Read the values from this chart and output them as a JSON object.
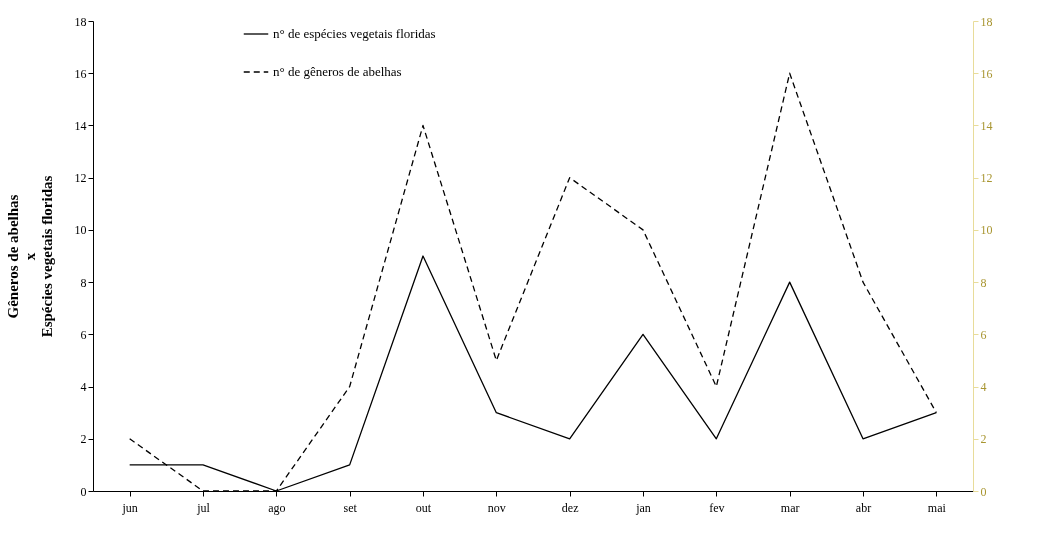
{
  "chart_data": {
    "type": "line",
    "ylabel": "Gêneros de abelhas\nx\nEspécies vegetais floridas",
    "categories": [
      "jun",
      "jul",
      "ago",
      "set",
      "out",
      "nov",
      "dez",
      "jan",
      "fev",
      "mar",
      "abr",
      "mai"
    ],
    "series": [
      {
        "name": "n° de espécies vegetais floridas",
        "color": "#000000",
        "line_style": "solid",
        "values": [
          1,
          1,
          0,
          1,
          9,
          3,
          2,
          6,
          2,
          8,
          2,
          3
        ]
      },
      {
        "name": "n° de gêneros de abelhas",
        "color": "#000000",
        "line_style": "dashed",
        "values": [
          2,
          0,
          0,
          4,
          14,
          5,
          12,
          10,
          4,
          16,
          8,
          3
        ]
      }
    ],
    "ylim": [
      0,
      18
    ],
    "yticks": [
      0,
      2,
      4,
      6,
      8,
      10,
      12,
      14,
      16,
      18
    ],
    "y2lim": [
      0,
      18
    ],
    "y2ticks": [
      0,
      2,
      4,
      6,
      8,
      10,
      12,
      14,
      16,
      18
    ],
    "grid": false,
    "legend": "top left"
  }
}
